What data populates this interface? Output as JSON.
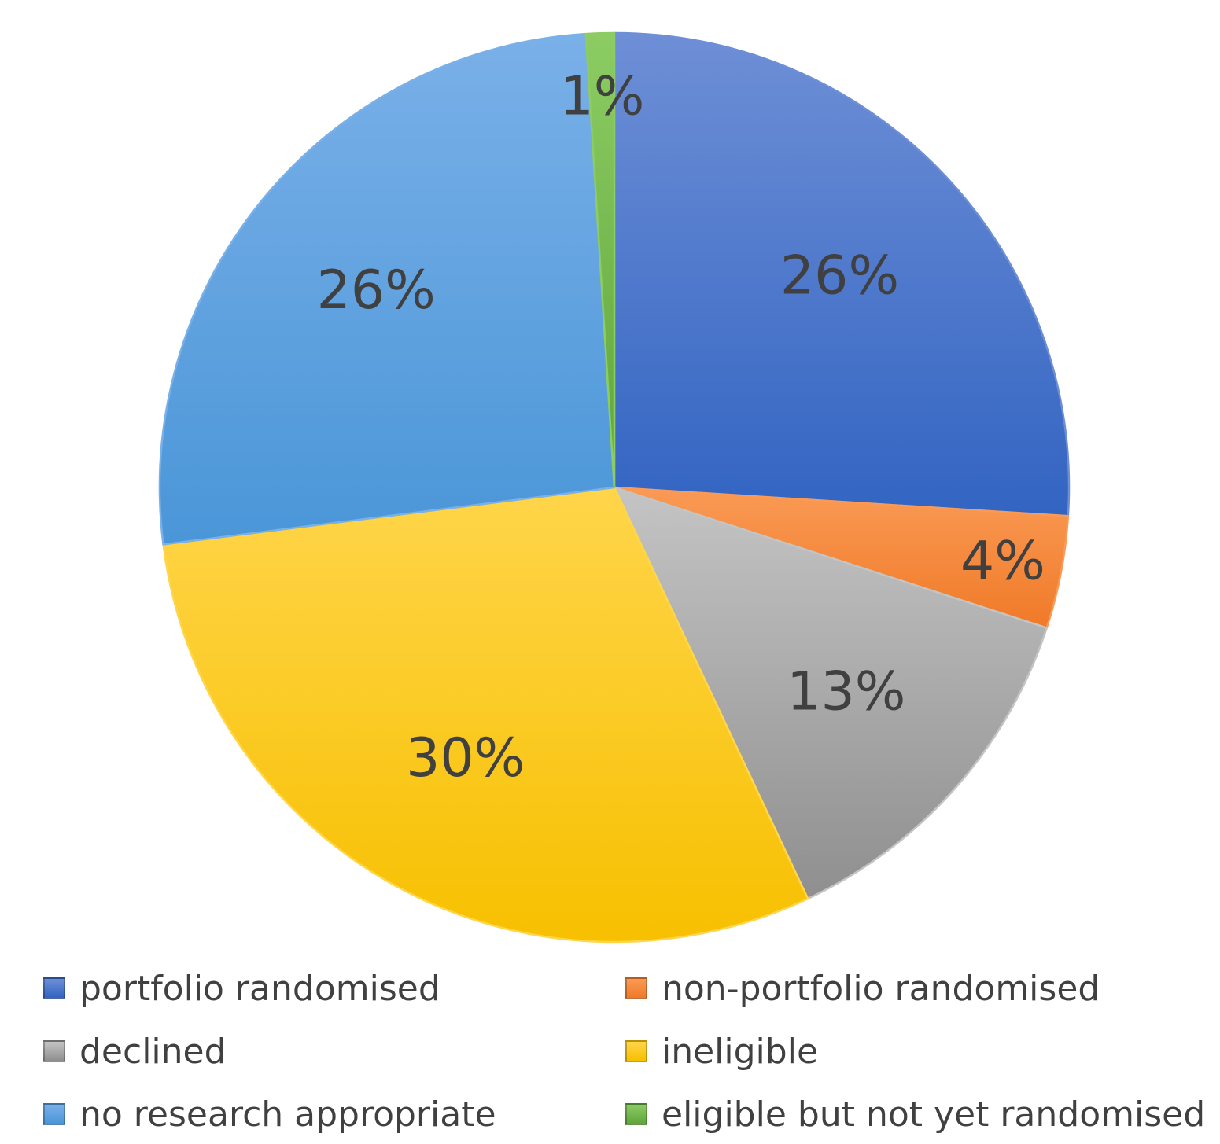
{
  "chart_data": {
    "type": "pie",
    "title": "",
    "legend_position": "bottom",
    "start_angle_deg": 0,
    "direction": "clockwise",
    "slices": [
      {
        "label": "portfolio randomised",
        "value": 26,
        "display": "26%",
        "color": "#4472c4",
        "light": "#6e8fd6",
        "dark": "#3264c2"
      },
      {
        "label": "non-portfolio randomised",
        "value": 4,
        "display": "4%",
        "color": "#ed7d31",
        "light": "#fa9a55",
        "dark": "#f07a28"
      },
      {
        "label": "declined",
        "value": 13,
        "display": "13%",
        "color": "#a5a5a5",
        "light": "#c4c4c4",
        "dark": "#8f8f8f"
      },
      {
        "label": "ineligible",
        "value": 30,
        "display": "30%",
        "color": "#ffc000",
        "light": "#ffd54a",
        "dark": "#f7c000"
      },
      {
        "label": "no research appropriate",
        "value": 26,
        "display": "26%",
        "color": "#5b9bd5",
        "light": "#7ab0e8",
        "dark": "#4a96d8"
      },
      {
        "label": "eligible but not yet randomised",
        "value": 1,
        "display": "1%",
        "color": "#70ad47",
        "light": "#8ccc63",
        "dark": "#5fa53c"
      }
    ]
  }
}
